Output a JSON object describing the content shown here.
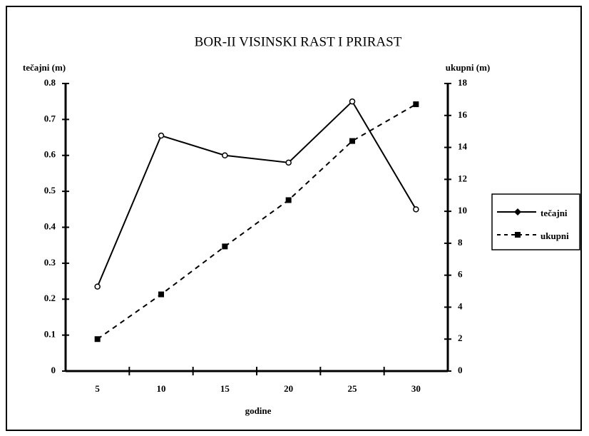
{
  "chart_data": {
    "type": "line",
    "title": "BOR-II VISINSKI RAST I PRIRAST",
    "x_label": "godine",
    "y_label": "tečajni (m)",
    "y2_label": "ukupni (m)",
    "categories": [
      5,
      10,
      15,
      20,
      25,
      30
    ],
    "series": [
      {
        "name": "tečajni",
        "color": "#000000",
        "line_style": "solid",
        "marker": "circle",
        "values": [
          0.235,
          0.655,
          0.6,
          0.58,
          0.75,
          0.45
        ]
      },
      {
        "name": "ukupni",
        "color": "#000000",
        "line_style": "dashed",
        "marker": "square",
        "axis": "y2",
        "values": [
          2.0,
          4.8,
          7.8,
          10.7,
          14.4,
          16.7
        ]
      }
    ],
    "ylim": [
      0,
      0.8
    ],
    "yticks": [
      0,
      0.1,
      0.2,
      0.3,
      0.4,
      0.5,
      0.6,
      0.7,
      0.8
    ],
    "y2lim": [
      0,
      18
    ],
    "y2ticks": [
      0,
      2,
      4,
      6,
      8,
      10,
      12,
      14,
      16,
      18
    ],
    "legend": "right"
  }
}
